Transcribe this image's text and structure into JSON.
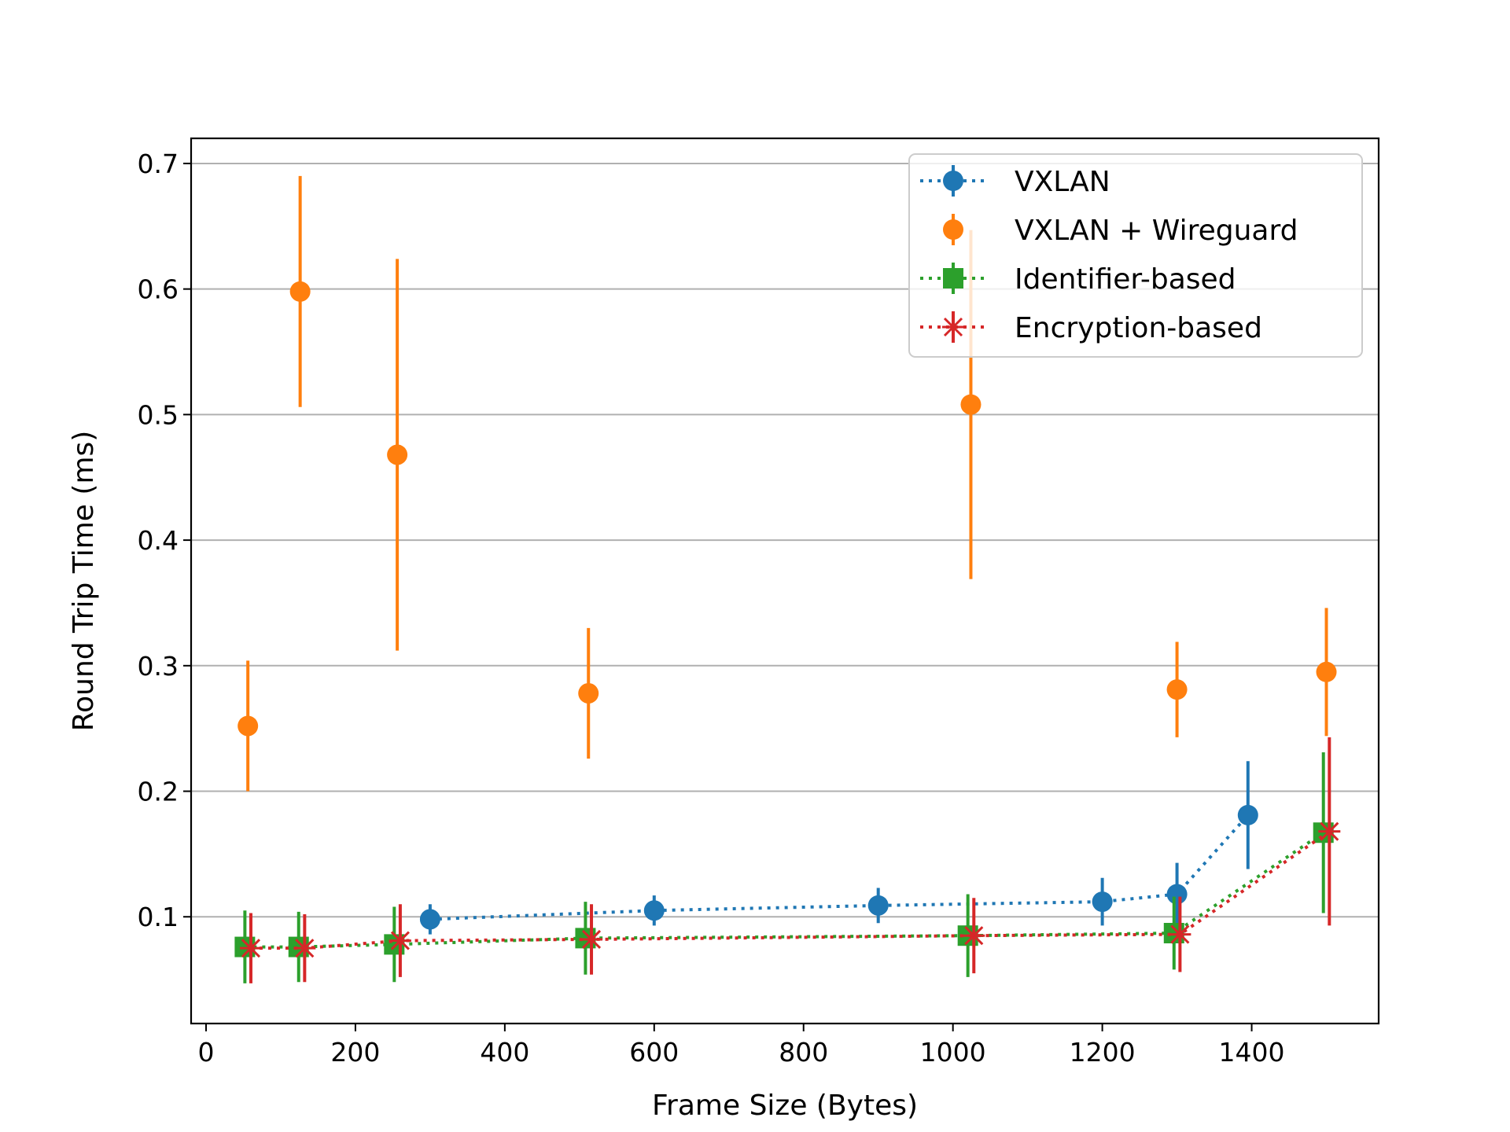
{
  "chart_data": {
    "type": "scatter",
    "title": "",
    "xlabel": "Frame Size (Bytes)",
    "ylabel": "Round Trip Time (ms)",
    "xlim": [
      -20,
      1570
    ],
    "ylim": [
      0.015,
      0.72
    ],
    "xticks": [
      0,
      200,
      400,
      600,
      800,
      1000,
      1200,
      1400
    ],
    "yticks": [
      0.1,
      0.2,
      0.3,
      0.4,
      0.5,
      0.6,
      0.7
    ],
    "xtick_labels": [
      "0",
      "200",
      "400",
      "600",
      "800",
      "1000",
      "1200",
      "1400"
    ],
    "ytick_labels": [
      "0.1",
      "0.2",
      "0.3",
      "0.4",
      "0.5",
      "0.6",
      "0.7"
    ],
    "grid": "horizontal",
    "legend_position": "top-right",
    "series": [
      {
        "name": "VXLAN",
        "color": "#1f77b4",
        "marker": "circle",
        "line": "dotted",
        "x": [
          300,
          600,
          900,
          1200,
          1300,
          1395
        ],
        "y": [
          0.098,
          0.105,
          0.109,
          0.112,
          0.118,
          0.181
        ],
        "err": [
          0.012,
          0.012,
          0.014,
          0.019,
          0.025,
          0.043
        ]
      },
      {
        "name": "VXLAN + Wireguard",
        "color": "#ff7f0e",
        "marker": "circle",
        "line": "none",
        "x": [
          56,
          126,
          256,
          512,
          1024,
          1300,
          1500
        ],
        "y": [
          0.252,
          0.598,
          0.468,
          0.278,
          0.508,
          0.281,
          0.295
        ],
        "err": [
          0.052,
          0.092,
          0.156,
          0.052,
          0.139,
          0.038,
          0.051
        ]
      },
      {
        "name": "Identifier-based",
        "color": "#2ca02c",
        "marker": "square",
        "line": "dotted",
        "x": [
          52,
          124,
          252,
          508,
          1020,
          1296,
          1496
        ],
        "y": [
          0.076,
          0.076,
          0.078,
          0.083,
          0.085,
          0.087,
          0.167
        ],
        "err": [
          0.029,
          0.028,
          0.03,
          0.029,
          0.033,
          0.029,
          0.064
        ]
      },
      {
        "name": "Encryption-based",
        "color": "#d62728",
        "marker": "x",
        "line": "dotted",
        "x": [
          60,
          132,
          260,
          516,
          1028,
          1304,
          1504
        ],
        "y": [
          0.075,
          0.075,
          0.081,
          0.082,
          0.085,
          0.086,
          0.168
        ],
        "err": [
          0.028,
          0.027,
          0.029,
          0.028,
          0.03,
          0.03,
          0.075
        ]
      }
    ]
  }
}
